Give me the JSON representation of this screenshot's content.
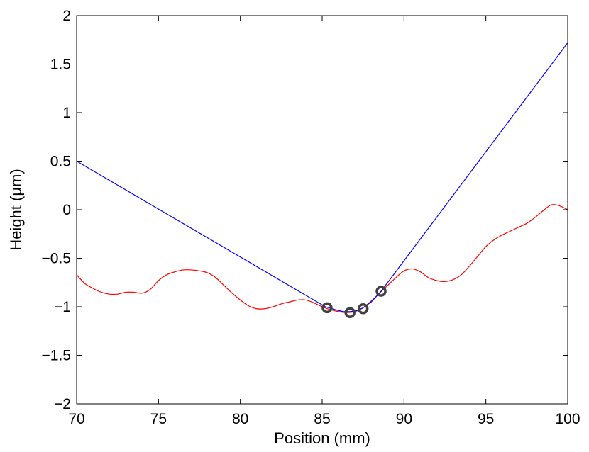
{
  "chart_data": {
    "type": "line",
    "title": "",
    "xlabel": "Position (mm)",
    "ylabel": "Height (μm)",
    "xlim": [
      70,
      100
    ],
    "ylim": [
      -2,
      2
    ],
    "xticks": [
      70,
      75,
      80,
      85,
      90,
      95,
      100
    ],
    "yticks": [
      -2,
      -1.5,
      -1,
      -0.5,
      0,
      0.5,
      1,
      1.5,
      2
    ],
    "xtick_labels": [
      "70",
      "75",
      "80",
      "85",
      "90",
      "95",
      "100"
    ],
    "ytick_labels": [
      "−2",
      "−1.5",
      "−1",
      "−0.5",
      "0",
      "0.5",
      "1",
      "1.5",
      "2"
    ],
    "grid": false,
    "legend": "none",
    "series": [
      {
        "color": "#ff0000",
        "style": "line",
        "x": [
          70,
          70.5,
          71,
          71.5,
          72,
          72.5,
          73,
          73.5,
          74,
          74.5,
          75,
          75.5,
          76,
          76.5,
          77,
          77.5,
          78,
          78.5,
          79,
          79.5,
          80,
          80.5,
          81,
          81.5,
          82,
          82.5,
          83,
          83.5,
          84,
          84.5,
          85,
          85.5,
          86,
          86.5,
          87,
          87.5,
          88,
          88.5,
          89,
          89.5,
          90,
          90.5,
          91,
          91.5,
          92,
          92.5,
          93,
          93.5,
          94,
          94.5,
          95,
          95.5,
          96,
          96.5,
          97,
          97.5,
          98,
          98.5,
          99,
          99.5,
          100
        ],
        "y": [
          -0.67,
          -0.76,
          -0.81,
          -0.85,
          -0.87,
          -0.87,
          -0.85,
          -0.85,
          -0.86,
          -0.82,
          -0.73,
          -0.67,
          -0.64,
          -0.62,
          -0.62,
          -0.63,
          -0.65,
          -0.7,
          -0.78,
          -0.86,
          -0.93,
          -0.99,
          -1.02,
          -1.02,
          -1.0,
          -0.97,
          -0.95,
          -0.93,
          -0.93,
          -0.96,
          -1.0,
          -1.03,
          -1.05,
          -1.06,
          -1.05,
          -1.01,
          -0.94,
          -0.86,
          -0.78,
          -0.7,
          -0.63,
          -0.61,
          -0.64,
          -0.7,
          -0.73,
          -0.74,
          -0.72,
          -0.67,
          -0.58,
          -0.48,
          -0.38,
          -0.31,
          -0.26,
          -0.22,
          -0.18,
          -0.14,
          -0.08,
          -0.01,
          0.05,
          0.04,
          0.0
        ]
      },
      {
        "color": "#0000ff",
        "style": "line",
        "x": [
          70,
          85.2,
          85.8,
          86.3,
          86.7,
          87.1,
          87.5,
          88.0,
          88.6,
          100
        ],
        "y": [
          0.5,
          -1.0,
          -1.03,
          -1.05,
          -1.05,
          -1.04,
          -1.01,
          -0.95,
          -0.84,
          1.72
        ]
      },
      {
        "color": "#404040",
        "style": "markers",
        "marker": "circle",
        "x": [
          85.3,
          86.7,
          87.5,
          88.6
        ],
        "y": [
          -1.01,
          -1.06,
          -1.02,
          -0.84
        ]
      }
    ]
  }
}
